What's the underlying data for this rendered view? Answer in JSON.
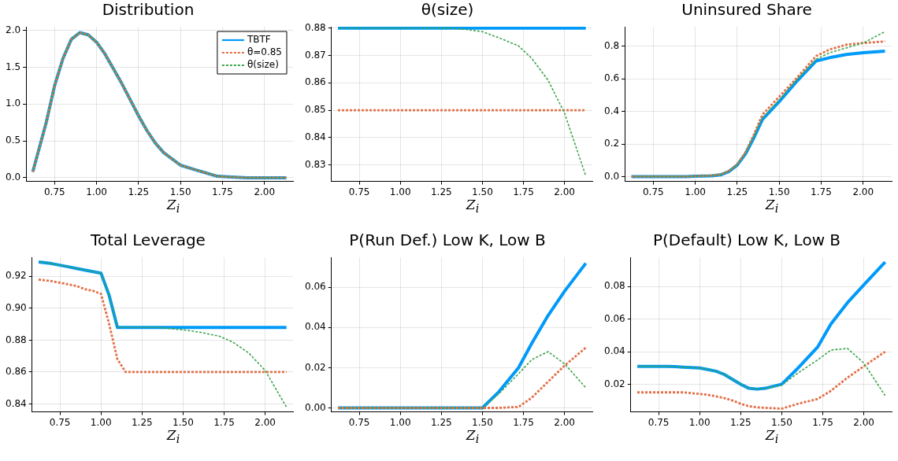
{
  "chart_data": [
    {
      "type": "line",
      "title": "Distribution",
      "xlabel": "Z$_{i}$",
      "x": [
        0.62,
        0.7,
        0.75,
        0.8,
        0.85,
        0.9,
        0.95,
        1.0,
        1.05,
        1.1,
        1.15,
        1.2,
        1.25,
        1.3,
        1.35,
        1.4,
        1.5,
        1.6,
        1.72,
        1.8,
        1.9,
        2.0,
        2.13
      ],
      "xlim": [
        0.58,
        2.17
      ],
      "xticks": [
        {
          "value": 0.75,
          "label": "0.75"
        },
        {
          "value": 1,
          "label": "1.00"
        },
        {
          "value": 1.25,
          "label": "1.25"
        },
        {
          "value": 1.5,
          "label": "1.50"
        },
        {
          "value": 1.75,
          "label": "1.75"
        },
        {
          "value": 2,
          "label": "2.00"
        }
      ],
      "ylim": [
        -0.05,
        2.05
      ],
      "yticks": [
        {
          "value": 0,
          "label": "0.0"
        },
        {
          "value": 0.5,
          "label": "0.5"
        },
        {
          "value": 1,
          "label": "1.0"
        },
        {
          "value": 1.5,
          "label": "1.5"
        },
        {
          "value": 2,
          "label": "2.0"
        }
      ],
      "grid": true,
      "legend": "top right",
      "series": [
        {
          "name": "TBTF",
          "color": "#009af9",
          "line_style": "solid",
          "values": [
            0.08,
            0.75,
            1.25,
            1.62,
            1.88,
            1.97,
            1.94,
            1.84,
            1.68,
            1.48,
            1.28,
            1.06,
            0.84,
            0.64,
            0.47,
            0.34,
            0.17,
            0.1,
            0.02,
            0.01,
            0,
            0,
            0
          ]
        },
        {
          "name": "θ=0.85",
          "color": "#e26f46",
          "line_style": "dashed",
          "values": [
            0.08,
            0.75,
            1.25,
            1.62,
            1.88,
            1.97,
            1.94,
            1.84,
            1.68,
            1.48,
            1.28,
            1.06,
            0.84,
            0.64,
            0.47,
            0.34,
            0.17,
            0.1,
            0.02,
            0.01,
            0,
            0,
            0
          ]
        },
        {
          "name": "θ(size)",
          "color": "#3da44d",
          "line_style": "dashed",
          "values": [
            0.08,
            0.75,
            1.25,
            1.62,
            1.88,
            1.97,
            1.94,
            1.84,
            1.68,
            1.48,
            1.28,
            1.06,
            0.84,
            0.64,
            0.47,
            0.34,
            0.17,
            0.1,
            0.02,
            0.01,
            0,
            0,
            0
          ]
        }
      ]
    },
    {
      "type": "line",
      "title": "θ(size)",
      "xlabel": "Z$_{i}$",
      "x": [
        0.62,
        0.7,
        0.75,
        0.8,
        0.85,
        0.9,
        0.95,
        1.0,
        1.05,
        1.1,
        1.15,
        1.2,
        1.25,
        1.3,
        1.35,
        1.4,
        1.5,
        1.6,
        1.72,
        1.8,
        1.9,
        2.0,
        2.13
      ],
      "xlim": [
        0.58,
        2.17
      ],
      "xticks": [
        {
          "value": 0.75,
          "label": "0.75"
        },
        {
          "value": 1,
          "label": "1.00"
        },
        {
          "value": 1.25,
          "label": "1.25"
        },
        {
          "value": 1.5,
          "label": "1.50"
        },
        {
          "value": 1.75,
          "label": "1.75"
        },
        {
          "value": 2,
          "label": "2.00"
        }
      ],
      "ylim": [
        0.824,
        0.8805
      ],
      "yticks": [
        {
          "value": 0.83,
          "label": "0.83"
        },
        {
          "value": 0.84,
          "label": "0.84"
        },
        {
          "value": 0.85,
          "label": "0.85"
        },
        {
          "value": 0.86,
          "label": "0.86"
        },
        {
          "value": 0.87,
          "label": "0.87"
        },
        {
          "value": 0.88,
          "label": "0.88"
        }
      ],
      "grid": true,
      "series": [
        {
          "color": "#009af9",
          "line_style": "solid",
          "values": [
            0.88,
            0.88,
            0.88,
            0.88,
            0.88,
            0.88,
            0.88,
            0.88,
            0.88,
            0.88,
            0.88,
            0.88,
            0.88,
            0.88,
            0.88,
            0.88,
            0.88,
            0.88,
            0.88,
            0.88,
            0.88,
            0.88,
            0.88
          ]
        },
        {
          "color": "#e26f46",
          "line_style": "dashed",
          "values": [
            0.85,
            0.85,
            0.85,
            0.85,
            0.85,
            0.85,
            0.85,
            0.85,
            0.85,
            0.85,
            0.85,
            0.85,
            0.85,
            0.85,
            0.85,
            0.85,
            0.85,
            0.85,
            0.85,
            0.85,
            0.85,
            0.85,
            0.85
          ]
        },
        {
          "color": "#3da44d",
          "line_style": "dashed",
          "values": [
            0.88,
            0.88,
            0.88,
            0.88,
            0.88,
            0.88,
            0.88,
            0.88,
            0.88,
            0.88,
            0.88,
            0.88,
            0.88,
            0.88,
            0.8798,
            0.8795,
            0.8787,
            0.8765,
            0.8735,
            0.869,
            0.861,
            0.849,
            0.826
          ]
        }
      ]
    },
    {
      "type": "line",
      "title": "Uninsured Share",
      "xlabel": "Z$_{i}$",
      "x": [
        0.62,
        0.7,
        0.75,
        0.8,
        0.85,
        0.9,
        0.95,
        1.0,
        1.05,
        1.1,
        1.15,
        1.2,
        1.25,
        1.3,
        1.35,
        1.4,
        1.5,
        1.6,
        1.72,
        1.8,
        1.9,
        2.0,
        2.13
      ],
      "xlim": [
        0.58,
        2.17
      ],
      "xticks": [
        {
          "value": 0.75,
          "label": "0.75"
        },
        {
          "value": 1,
          "label": "1.00"
        },
        {
          "value": 1.25,
          "label": "1.25"
        },
        {
          "value": 1.5,
          "label": "1.50"
        },
        {
          "value": 1.75,
          "label": "1.75"
        },
        {
          "value": 2,
          "label": "2.00"
        }
      ],
      "ylim": [
        -0.03,
        0.92
      ],
      "yticks": [
        {
          "value": 0,
          "label": "0.0"
        },
        {
          "value": 0.2,
          "label": "0.2"
        },
        {
          "value": 0.4,
          "label": "0.4"
        },
        {
          "value": 0.6,
          "label": "0.6"
        },
        {
          "value": 0.8,
          "label": "0.8"
        }
      ],
      "grid": true,
      "series": [
        {
          "color": "#009af9",
          "line_style": "solid",
          "values": [
            0,
            0,
            0,
            0,
            0,
            0,
            0,
            0.002,
            0.003,
            0.004,
            0.01,
            0.03,
            0.07,
            0.14,
            0.24,
            0.35,
            0.46,
            0.58,
            0.71,
            0.73,
            0.75,
            0.76,
            0.77
          ]
        },
        {
          "color": "#e26f46",
          "line_style": "dashed",
          "values": [
            0,
            0,
            0,
            0,
            0,
            0,
            0,
            0.002,
            0.004,
            0.006,
            0.012,
            0.033,
            0.075,
            0.15,
            0.26,
            0.38,
            0.49,
            0.6,
            0.74,
            0.78,
            0.81,
            0.82,
            0.83
          ]
        },
        {
          "color": "#3da44d",
          "line_style": "dashed",
          "values": [
            0,
            0,
            0,
            0,
            0,
            0,
            0,
            0.002,
            0.003,
            0.005,
            0.011,
            0.031,
            0.072,
            0.145,
            0.25,
            0.36,
            0.47,
            0.59,
            0.72,
            0.76,
            0.79,
            0.82,
            0.89
          ]
        }
      ]
    },
    {
      "type": "line",
      "title": "Total Leverage",
      "xlabel": "Z$_{i}$",
      "x": [
        0.62,
        0.7,
        0.75,
        0.8,
        0.85,
        0.9,
        0.95,
        1.0,
        1.05,
        1.1,
        1.15,
        1.2,
        1.25,
        1.3,
        1.35,
        1.4,
        1.5,
        1.6,
        1.72,
        1.8,
        1.9,
        2.0,
        2.13
      ],
      "xlim": [
        0.58,
        2.17
      ],
      "xticks": [
        {
          "value": 0.75,
          "label": "0.75"
        },
        {
          "value": 1,
          "label": "1.00"
        },
        {
          "value": 1.25,
          "label": "1.25"
        },
        {
          "value": 1.5,
          "label": "1.50"
        },
        {
          "value": 1.75,
          "label": "1.75"
        },
        {
          "value": 2,
          "label": "2.00"
        }
      ],
      "ylim": [
        0.835,
        0.932
      ],
      "yticks": [
        {
          "value": 0.84,
          "label": "0.84"
        },
        {
          "value": 0.86,
          "label": "0.86"
        },
        {
          "value": 0.88,
          "label": "0.88"
        },
        {
          "value": 0.9,
          "label": "0.90"
        },
        {
          "value": 0.92,
          "label": "0.92"
        }
      ],
      "grid": true,
      "series": [
        {
          "color": "#009af9",
          "line_style": "solid",
          "values": [
            0.929,
            0.928,
            0.927,
            0.926,
            0.925,
            0.924,
            0.923,
            0.922,
            0.908,
            0.888,
            0.888,
            0.888,
            0.888,
            0.888,
            0.888,
            0.888,
            0.888,
            0.888,
            0.888,
            0.888,
            0.888,
            0.888,
            0.888
          ]
        },
        {
          "color": "#e26f46",
          "line_style": "dashed",
          "values": [
            0.918,
            0.917,
            0.916,
            0.915,
            0.914,
            0.912,
            0.911,
            0.909,
            0.89,
            0.868,
            0.86,
            0.86,
            0.86,
            0.86,
            0.86,
            0.86,
            0.86,
            0.86,
            0.86,
            0.86,
            0.86,
            0.86,
            0.86
          ]
        },
        {
          "color": "#3da44d",
          "line_style": "dashed",
          "values": [
            0.929,
            0.928,
            0.927,
            0.926,
            0.925,
            0.924,
            0.923,
            0.922,
            0.908,
            0.888,
            0.888,
            0.888,
            0.888,
            0.888,
            0.888,
            0.8875,
            0.8865,
            0.885,
            0.8825,
            0.879,
            0.872,
            0.861,
            0.838
          ]
        }
      ]
    },
    {
      "type": "line",
      "title": "P(Run Def.) Low K, Low B",
      "xlabel": "Z$_{i}$",
      "x": [
        0.62,
        0.7,
        0.75,
        0.8,
        0.85,
        0.9,
        0.95,
        1.0,
        1.05,
        1.1,
        1.15,
        1.2,
        1.25,
        1.3,
        1.35,
        1.4,
        1.5,
        1.6,
        1.72,
        1.8,
        1.9,
        2.0,
        2.13
      ],
      "xlim": [
        0.58,
        2.17
      ],
      "xticks": [
        {
          "value": 0.75,
          "label": "0.75"
        },
        {
          "value": 1,
          "label": "1.00"
        },
        {
          "value": 1.25,
          "label": "1.25"
        },
        {
          "value": 1.5,
          "label": "1.50"
        },
        {
          "value": 1.75,
          "label": "1.75"
        },
        {
          "value": 2,
          "label": "2.00"
        }
      ],
      "ylim": [
        -0.002,
        0.075
      ],
      "yticks": [
        {
          "value": 0,
          "label": "0.00"
        },
        {
          "value": 0.02,
          "label": "0.02"
        },
        {
          "value": 0.04,
          "label": "0.04"
        },
        {
          "value": 0.06,
          "label": "0.06"
        }
      ],
      "grid": true,
      "series": [
        {
          "color": "#009af9",
          "line_style": "solid",
          "values": [
            0,
            0,
            0,
            0,
            0,
            0,
            0,
            0,
            0,
            0,
            0,
            0,
            0,
            0,
            0,
            0,
            0,
            0.008,
            0.02,
            0.032,
            0.046,
            0.058,
            0.072
          ]
        },
        {
          "color": "#e26f46",
          "line_style": "dashed",
          "values": [
            0,
            0,
            0,
            0,
            0,
            0,
            0,
            0,
            0,
            0,
            0,
            0,
            0,
            0,
            0,
            0,
            0,
            0,
            0.0005,
            0.005,
            0.013,
            0.021,
            0.03
          ]
        },
        {
          "color": "#3da44d",
          "line_style": "dashed",
          "values": [
            0,
            0,
            0,
            0,
            0,
            0,
            0,
            0,
            0,
            0,
            0,
            0,
            0,
            0,
            0,
            0,
            0,
            0.007,
            0.017,
            0.024,
            0.028,
            0.022,
            0.01
          ]
        }
      ]
    },
    {
      "type": "line",
      "title": "P(Default) Low K, Low B",
      "xlabel": "Z$_{i}$",
      "x": [
        0.62,
        0.7,
        0.75,
        0.8,
        0.85,
        0.9,
        0.95,
        1.0,
        1.05,
        1.1,
        1.15,
        1.2,
        1.25,
        1.3,
        1.35,
        1.4,
        1.5,
        1.6,
        1.72,
        1.8,
        1.9,
        2.0,
        2.13
      ],
      "xlim": [
        0.58,
        2.17
      ],
      "xticks": [
        {
          "value": 0.75,
          "label": "0.75"
        },
        {
          "value": 1,
          "label": "1.00"
        },
        {
          "value": 1.25,
          "label": "1.25"
        },
        {
          "value": 1.5,
          "label": "1.50"
        },
        {
          "value": 1.75,
          "label": "1.75"
        },
        {
          "value": 2,
          "label": "2.00"
        }
      ],
      "ylim": [
        0.003,
        0.098
      ],
      "yticks": [
        {
          "value": 0.02,
          "label": "0.02"
        },
        {
          "value": 0.04,
          "label": "0.04"
        },
        {
          "value": 0.06,
          "label": "0.06"
        },
        {
          "value": 0.08,
          "label": "0.08"
        }
      ],
      "grid": true,
      "series": [
        {
          "color": "#009af9",
          "line_style": "solid",
          "values": [
            0.031,
            0.031,
            0.031,
            0.031,
            0.0308,
            0.0305,
            0.0302,
            0.03,
            0.029,
            0.028,
            0.026,
            0.023,
            0.02,
            0.0175,
            0.017,
            0.0175,
            0.02,
            0.03,
            0.043,
            0.057,
            0.07,
            0.081,
            0.095
          ]
        },
        {
          "color": "#e26f46",
          "line_style": "dashed",
          "values": [
            0.015,
            0.015,
            0.015,
            0.015,
            0.015,
            0.015,
            0.0145,
            0.014,
            0.0135,
            0.0125,
            0.0115,
            0.01,
            0.008,
            0.0065,
            0.0058,
            0.0055,
            0.005,
            0.008,
            0.011,
            0.016,
            0.024,
            0.031,
            0.04
          ]
        },
        {
          "color": "#3da44d",
          "line_style": "dashed",
          "values": [
            0.031,
            0.031,
            0.031,
            0.031,
            0.0308,
            0.0305,
            0.0302,
            0.03,
            0.029,
            0.028,
            0.026,
            0.023,
            0.02,
            0.0175,
            0.017,
            0.0175,
            0.0195,
            0.027,
            0.035,
            0.041,
            0.042,
            0.033,
            0.013
          ]
        }
      ]
    }
  ]
}
